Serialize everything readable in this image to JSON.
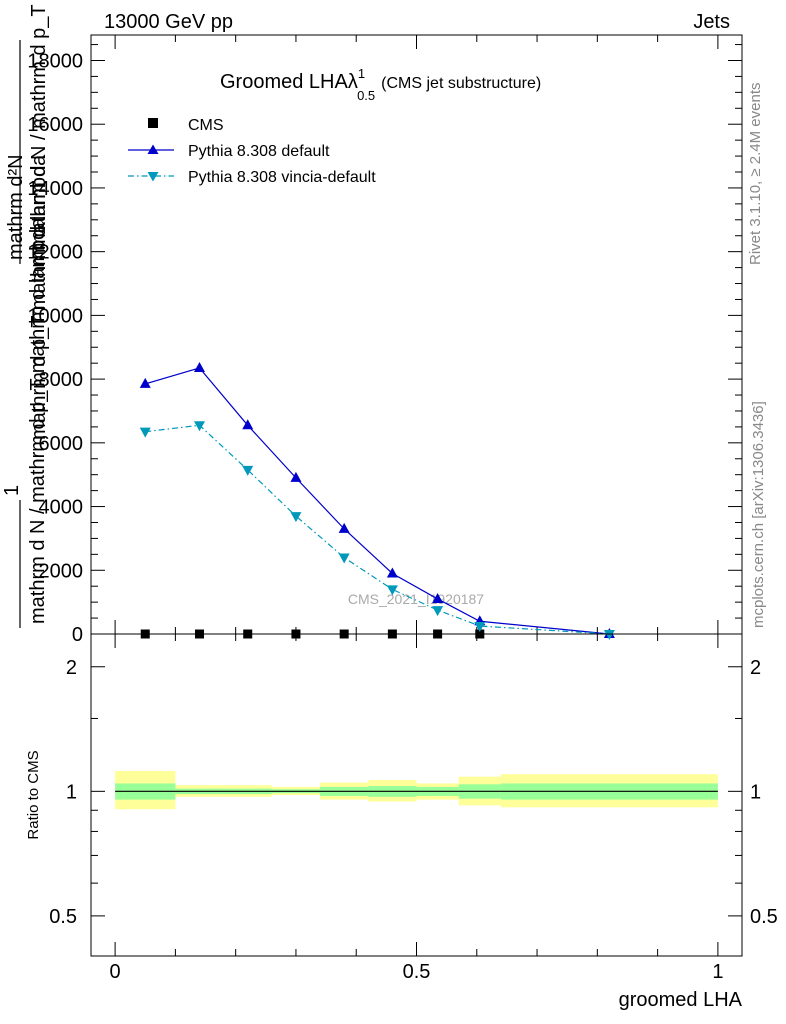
{
  "header": {
    "left": "13000 GeV pp",
    "right": "Jets"
  },
  "side_labels": {
    "rivet": "Rivet 3.1.10, ≥ 2.4M events",
    "mcplots": "mcplots.cern.ch [arXiv:1306.3436]"
  },
  "watermark": "CMS_2021_I1920187",
  "chart_data": [
    {
      "type": "line",
      "title": "Groomed LHAλ",
      "title_sup": "1",
      "title_sub": "0.5",
      "title_suffix": "(CMS jet substructure)",
      "ylabel": "mathrm d N / mathrm d p_T mathrm d lambda",
      "ylabel_overlay": [
        "mathrm d²N",
        "mathrm d p_T mathrm d lambda",
        "1",
        "mathrm d N / mathrm d p_T"
      ],
      "xlim": [
        -0.04,
        1.04
      ],
      "ylim": [
        0,
        18800
      ],
      "y_ticks": [
        0,
        2000,
        4000,
        6000,
        8000,
        10000,
        12000,
        14000,
        16000,
        18000
      ],
      "y_tick_labels": [
        "0",
        "2000",
        "4000",
        "6000",
        "8000",
        "10000",
        "12000",
        "14000",
        "16000",
        "18000"
      ],
      "legend_position": "top-left",
      "series": [
        {
          "name": "CMS",
          "marker": "square",
          "color": "#000000",
          "x": [
            0.05,
            0.14,
            0.22,
            0.3,
            0.38,
            0.46,
            0.535,
            0.605
          ],
          "y": [
            0,
            0,
            0,
            0,
            0,
            0,
            0,
            0
          ]
        },
        {
          "name": "Pythia 8.308 default",
          "marker": "triangle-up",
          "color": "#0000cc",
          "dash": "",
          "x": [
            0.05,
            0.14,
            0.22,
            0.3,
            0.38,
            0.46,
            0.535,
            0.605,
            0.82
          ],
          "y": [
            7850,
            8350,
            6550,
            4900,
            3300,
            1900,
            1100,
            400,
            0
          ]
        },
        {
          "name": "Pythia 8.308 vincia-default",
          "marker": "triangle-down",
          "color": "#0099bb",
          "dash": "6,3,1.5,3",
          "x": [
            0.05,
            0.14,
            0.22,
            0.3,
            0.38,
            0.46,
            0.535,
            0.605,
            0.82
          ],
          "y": [
            6350,
            6550,
            5150,
            3700,
            2400,
            1400,
            750,
            250,
            0
          ]
        }
      ]
    },
    {
      "type": "area",
      "ylabel": "Ratio to CMS",
      "xlabel": "groomed LHA",
      "xlim": [
        -0.04,
        1.04
      ],
      "ylim": [
        0.4,
        2.4
      ],
      "y_scale": "log",
      "y_ticks": [
        0.5,
        1,
        2
      ],
      "y_tick_labels": [
        "0.5",
        "1",
        "2"
      ],
      "x_ticks": [
        0,
        0.5,
        1
      ],
      "x_tick_labels": [
        "0",
        "0.5",
        "1"
      ],
      "reference": 1,
      "bands": [
        {
          "x0": 0.0,
          "x1": 0.1,
          "stat_lo": 0.955,
          "stat_hi": 1.045,
          "tot_lo": 0.905,
          "tot_hi": 1.12
        },
        {
          "x0": 0.1,
          "x1": 0.18,
          "stat_lo": 0.985,
          "stat_hi": 1.015,
          "tot_lo": 0.97,
          "tot_hi": 1.035
        },
        {
          "x0": 0.18,
          "x1": 0.26,
          "stat_lo": 0.985,
          "stat_hi": 1.015,
          "tot_lo": 0.97,
          "tot_hi": 1.035
        },
        {
          "x0": 0.26,
          "x1": 0.34,
          "stat_lo": 0.99,
          "stat_hi": 1.012,
          "tot_lo": 0.98,
          "tot_hi": 1.025
        },
        {
          "x0": 0.34,
          "x1": 0.42,
          "stat_lo": 0.975,
          "stat_hi": 1.025,
          "tot_lo": 0.955,
          "tot_hi": 1.05
        },
        {
          "x0": 0.42,
          "x1": 0.5,
          "stat_lo": 0.97,
          "stat_hi": 1.03,
          "tot_lo": 0.945,
          "tot_hi": 1.065
        },
        {
          "x0": 0.5,
          "x1": 0.57,
          "stat_lo": 0.975,
          "stat_hi": 1.025,
          "tot_lo": 0.955,
          "tot_hi": 1.045
        },
        {
          "x0": 0.57,
          "x1": 0.64,
          "stat_lo": 0.96,
          "stat_hi": 1.04,
          "tot_lo": 0.925,
          "tot_hi": 1.085
        },
        {
          "x0": 0.64,
          "x1": 1.0,
          "stat_lo": 0.955,
          "stat_hi": 1.045,
          "tot_lo": 0.915,
          "tot_hi": 1.1
        }
      ],
      "colors": {
        "stat": "#99ff99",
        "total": "#ffff99"
      }
    }
  ]
}
